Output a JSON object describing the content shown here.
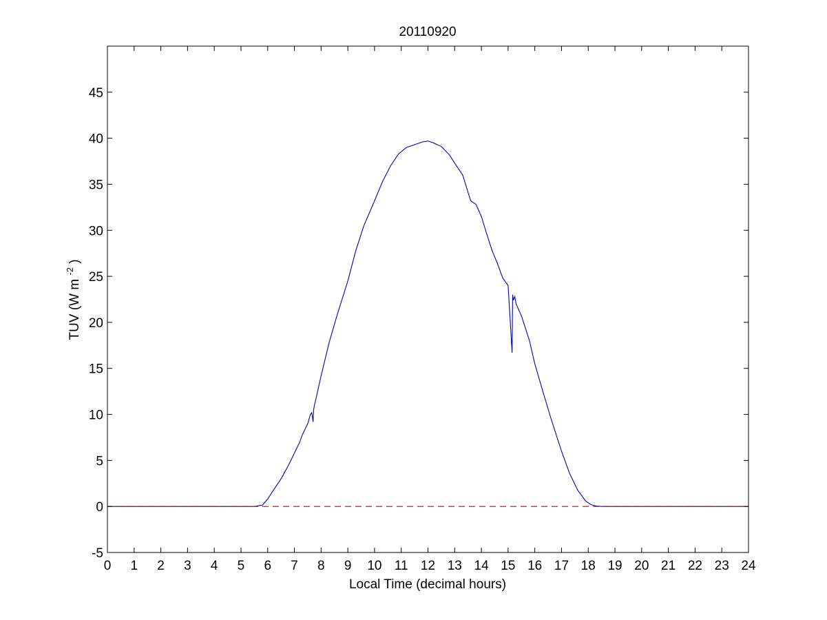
{
  "chart_data": {
    "type": "line",
    "title": "20110920",
    "xlabel": "Local Time (decimal hours)",
    "ylabel_text": "TUV (W m",
    "ylabel_superscript": "-2",
    "ylabel_close": ")",
    "xlim": [
      0,
      24
    ],
    "ylim": [
      -5,
      50
    ],
    "xticks": [
      0,
      1,
      2,
      3,
      4,
      5,
      6,
      7,
      8,
      9,
      10,
      11,
      12,
      13,
      14,
      15,
      16,
      17,
      18,
      19,
      20,
      21,
      22,
      23,
      24
    ],
    "yticks": [
      -5,
      0,
      5,
      10,
      15,
      20,
      25,
      30,
      35,
      40,
      45
    ],
    "grid": false,
    "series": [
      {
        "color": "#0000aa",
        "style": "solid",
        "x": [
          0,
          5.5,
          5.8,
          6.0,
          6.2,
          6.5,
          6.8,
          7.0,
          7.2,
          7.3,
          7.4,
          7.5,
          7.6,
          7.65,
          7.7,
          7.72,
          7.75,
          7.8,
          8.0,
          8.3,
          8.6,
          9.0,
          9.3,
          9.6,
          10.0,
          10.3,
          10.6,
          10.9,
          11.2,
          11.5,
          11.8,
          12.0,
          12.2,
          12.5,
          12.8,
          13.0,
          13.3,
          13.6,
          13.8,
          14.0,
          14.2,
          14.4,
          14.6,
          14.8,
          15.0,
          15.15,
          15.17,
          15.2,
          15.25,
          15.3,
          15.5,
          15.8,
          16.0,
          16.3,
          16.6,
          17.0,
          17.3,
          17.6,
          17.9,
          18.1,
          18.3,
          18.5,
          18.7,
          24
        ],
        "y": [
          0,
          0,
          0.15,
          0.8,
          1.7,
          3.0,
          4.6,
          5.8,
          7.0,
          7.8,
          8.4,
          9.0,
          10.0,
          10.2,
          9.2,
          10.5,
          11.0,
          11.6,
          14.2,
          17.8,
          20.8,
          24.5,
          27.8,
          30.5,
          33.2,
          35.3,
          37.0,
          38.3,
          39.0,
          39.3,
          39.6,
          39.7,
          39.5,
          39.1,
          38.2,
          37.3,
          36.0,
          33.2,
          32.8,
          31.5,
          29.6,
          27.8,
          26.4,
          24.8,
          24.0,
          16.7,
          23.0,
          22.4,
          22.8,
          22.0,
          20.7,
          18.0,
          15.5,
          12.5,
          9.6,
          6.0,
          3.6,
          1.8,
          0.6,
          0.2,
          0.05,
          0.0,
          0,
          0
        ]
      },
      {
        "color": "#c00000",
        "style": "dashed",
        "x": [
          0,
          24
        ],
        "y": [
          0,
          0
        ]
      }
    ]
  }
}
